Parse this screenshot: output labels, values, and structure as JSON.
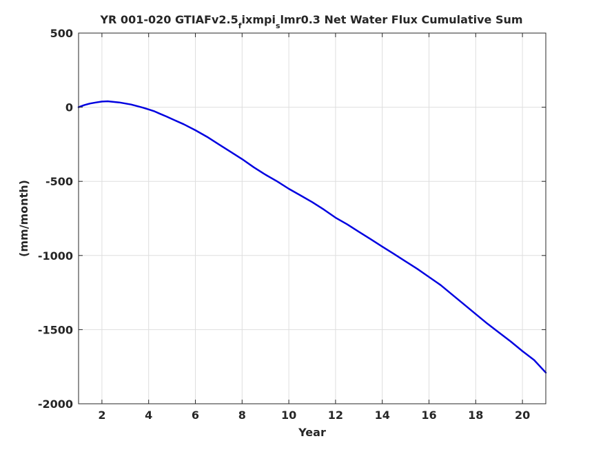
{
  "chart_data": {
    "type": "line",
    "title": {
      "prefix": "YR 001-020 GTIAFv2.5",
      "sub1": "f",
      "mid": "ixmpi",
      "sub2": "s",
      "suffix": "lmr0.3 Net Water Flux Cumulative Sum"
    },
    "xlabel": "Year",
    "ylabel": "(mm/month)",
    "xlim": [
      1,
      21
    ],
    "ylim": [
      -2000,
      500
    ],
    "xticks": [
      2,
      4,
      6,
      8,
      10,
      12,
      14,
      16,
      18,
      20
    ],
    "xtick_labels": [
      "2",
      "4",
      "6",
      "8",
      "10",
      "12",
      "14",
      "16",
      "18",
      "20"
    ],
    "yticks": [
      500,
      0,
      -500,
      -1000,
      -1500,
      -2000
    ],
    "ytick_labels": [
      "500",
      "0",
      "-500",
      "-1000",
      "-1500",
      "-2000"
    ],
    "grid": true,
    "line_color": "#0000e0",
    "series": [
      {
        "x": [
          1.0,
          1.25,
          1.5,
          1.75,
          2.0,
          2.25,
          2.5,
          2.75,
          3.0,
          3.25,
          3.5,
          3.75,
          4.0,
          4.25,
          4.5,
          4.75,
          5.0,
          5.5,
          6.0,
          6.5,
          7.0,
          7.5,
          8.0,
          8.5,
          9.0,
          9.5,
          10.0,
          10.5,
          11.0,
          11.5,
          12.0,
          12.5,
          13.0,
          13.5,
          14.0,
          14.5,
          15.0,
          15.5,
          16.0,
          16.5,
          17.0,
          17.5,
          18.0,
          18.5,
          19.0,
          19.5,
          20.0,
          20.5,
          21.0
        ],
        "y": [
          0,
          15,
          25,
          32,
          38,
          40,
          36,
          32,
          25,
          18,
          8,
          -3,
          -15,
          -28,
          -45,
          -62,
          -80,
          -115,
          -155,
          -200,
          -250,
          -300,
          -350,
          -405,
          -455,
          -500,
          -550,
          -595,
          -640,
          -690,
          -745,
          -790,
          -840,
          -890,
          -940,
          -990,
          -1040,
          -1090,
          -1145,
          -1200,
          -1265,
          -1330,
          -1395,
          -1460,
          -1520,
          -1580,
          -1645,
          -1705,
          -1790
        ]
      }
    ]
  }
}
